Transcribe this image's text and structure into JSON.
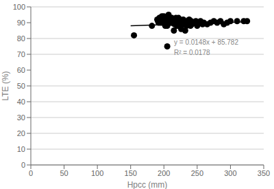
{
  "chart_data": {
    "type": "scatter",
    "xlabel": "Hpcc (mm)",
    "ylabel": "LTE (%)",
    "series": [
      {
        "type": "scatter",
        "color": "#000000",
        "marker": "dot",
        "x": [
          155,
          182,
          190,
          191,
          192,
          193,
          195,
          196,
          197,
          198,
          199,
          200,
          200,
          201,
          201,
          202,
          202,
          203,
          204,
          205,
          205,
          206,
          207,
          207,
          208,
          208,
          209,
          210,
          210,
          210,
          211,
          211,
          212,
          212,
          213,
          213,
          214,
          215,
          215,
          216,
          217,
          218,
          218,
          219,
          220,
          220,
          221,
          222,
          223,
          224,
          224,
          225,
          225,
          226,
          227,
          228,
          229,
          230,
          231,
          232,
          233,
          234,
          235,
          236,
          237,
          238,
          240,
          241,
          242,
          245,
          248,
          250,
          252,
          255,
          258,
          260,
          265,
          270,
          275,
          280,
          285,
          290,
          295,
          300,
          310,
          320,
          325,
          205,
          215,
          220
        ],
        "values": [
          82,
          88,
          92,
          91,
          90,
          93,
          90,
          91,
          94,
          90,
          91,
          93,
          94,
          90,
          92,
          88,
          91,
          90,
          90,
          89,
          88,
          92,
          91,
          95,
          93,
          90,
          92,
          91,
          93,
          90,
          92,
          91,
          90,
          93,
          92,
          90,
          91,
          92,
          90,
          89,
          91,
          93,
          90,
          92,
          88,
          91,
          90,
          93,
          89,
          92,
          91,
          90,
          88,
          86,
          91,
          90,
          92,
          89,
          91,
          85,
          90,
          88,
          91,
          89,
          90,
          92,
          88,
          91,
          89,
          90,
          91,
          88,
          90,
          91,
          89,
          90,
          89,
          90,
          91,
          90,
          91,
          89,
          90,
          91,
          91,
          91,
          91,
          75,
          85,
          88
        ]
      },
      {
        "type": "line",
        "color": "#000000",
        "line_style": "solid",
        "x": [
          150,
          325
        ],
        "values": [
          88.002,
          90.592
        ]
      }
    ],
    "annotations": [
      "y = 0.0148x + 85.782",
      "R² = 0.0178"
    ],
    "xlim": [
      0,
      350
    ],
    "ylim": [
      0,
      100
    ],
    "xticks": [
      0,
      50,
      100,
      150,
      200,
      250,
      300,
      350
    ],
    "yticks": [
      0,
      10,
      20,
      30,
      40,
      50,
      60,
      70,
      80,
      90,
      100
    ],
    "grid": "y"
  }
}
